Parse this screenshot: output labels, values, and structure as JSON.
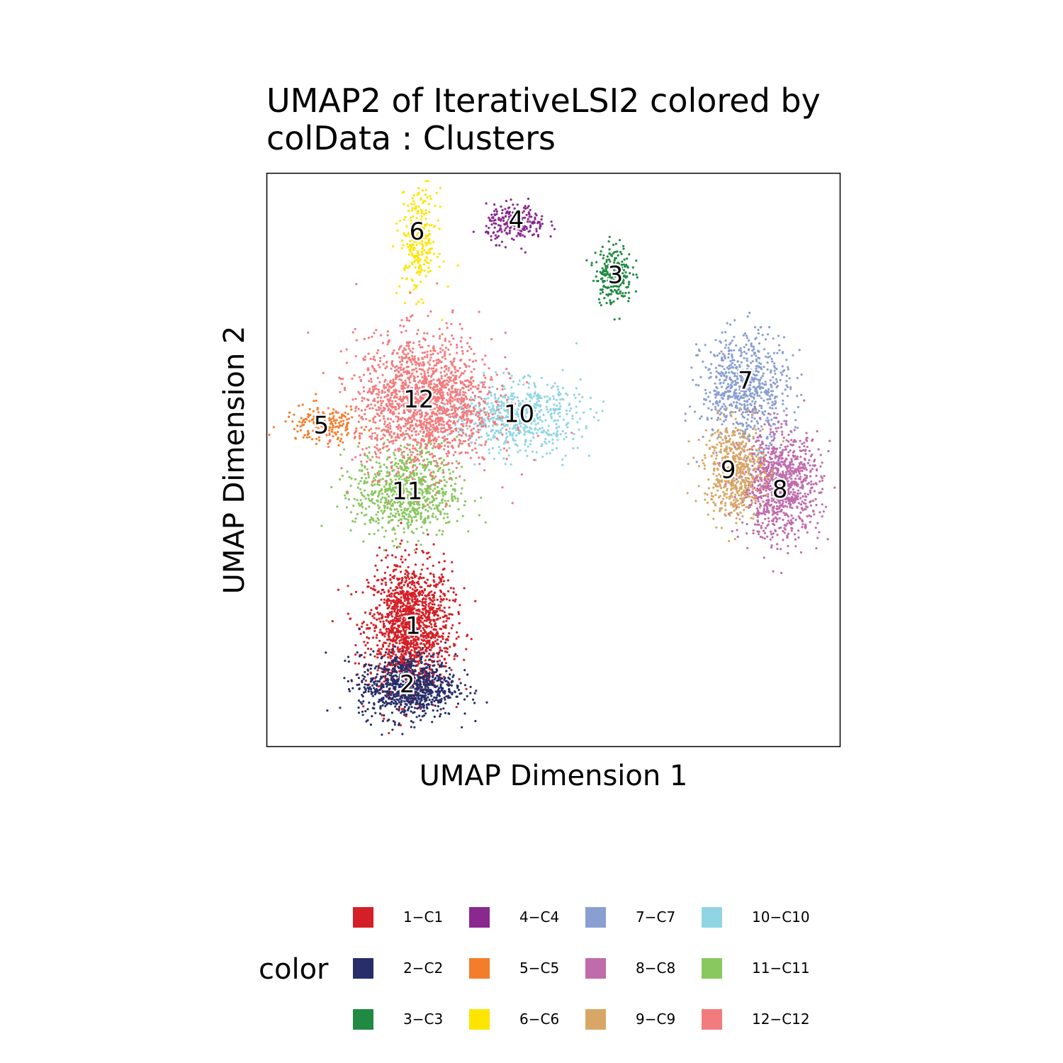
{
  "chart_data": {
    "type": "scatter",
    "title_lines": [
      "UMAP2 of IterativeLSI2  colored by",
      "colData :  Clusters"
    ],
    "xlabel": "UMAP Dimension 1",
    "ylabel": "UMAP Dimension 2",
    "xlim": [
      0,
      100
    ],
    "ylim": [
      0,
      100
    ],
    "grid": false,
    "legend_title": "color",
    "legend_position": "bottom",
    "clusters": [
      {
        "id": "1",
        "name": "1−C1",
        "color": "#D51F26",
        "cx": 25,
        "cy": 21,
        "sx": 3.6,
        "sy": 5.5,
        "n": 1500
      },
      {
        "id": "2",
        "name": "2−C2",
        "color": "#272E6A",
        "cx": 24.5,
        "cy": 10.5,
        "sx": 4.2,
        "sy": 2.8,
        "n": 900
      },
      {
        "id": "3",
        "name": "3−C3",
        "color": "#208A42",
        "cx": 60.5,
        "cy": 82.5,
        "sx": 1.6,
        "sy": 2.6,
        "n": 230
      },
      {
        "id": "4",
        "name": "4−C4",
        "color": "#89288F",
        "cx": 43.5,
        "cy": 91.2,
        "sx": 2.6,
        "sy": 1.6,
        "n": 230
      },
      {
        "id": "5",
        "name": "5−C5",
        "color": "#F47D2B",
        "cx": 10,
        "cy": 56.2,
        "sx": 3.5,
        "sy": 1.6,
        "n": 180
      },
      {
        "id": "6",
        "name": "6−C6",
        "color": "#FEE500",
        "cx": 26.5,
        "cy": 88,
        "sx": 1.6,
        "sy": 4.5,
        "n": 260
      },
      {
        "id": "7",
        "name": "7−C7",
        "color": "#8A9FD1",
        "cx": 83.5,
        "cy": 62.5,
        "sx": 3.8,
        "sy": 4.8,
        "n": 700
      },
      {
        "id": "8",
        "name": "8−C8",
        "color": "#C06CAB",
        "cx": 89.5,
        "cy": 45.5,
        "sx": 3.5,
        "sy": 4.5,
        "n": 1000
      },
      {
        "id": "9",
        "name": "9−C9",
        "color": "#D8A767",
        "cx": 81.5,
        "cy": 48.2,
        "sx": 2.6,
        "sy": 4.2,
        "n": 550
      },
      {
        "id": "10",
        "name": "10−C10",
        "color": "#90D5E4",
        "cx": 43.5,
        "cy": 57.5,
        "sx": 5.5,
        "sy": 3.0,
        "n": 650
      },
      {
        "id": "11",
        "name": "11−C11",
        "color": "#89C75F",
        "cx": 24.5,
        "cy": 44.5,
        "sx": 4.5,
        "sy": 4.0,
        "n": 800
      },
      {
        "id": "12",
        "name": "12−C12",
        "color": "#F37B7D",
        "cx": 27.5,
        "cy": 60,
        "sx": 6.0,
        "sy": 5.8,
        "n": 1700
      }
    ],
    "label_positions": [
      {
        "id": "1",
        "x": 25.5,
        "y": 21
      },
      {
        "id": "2",
        "x": 24.5,
        "y": 10.8
      },
      {
        "id": "3",
        "x": 60.8,
        "y": 82.2
      },
      {
        "id": "4",
        "x": 43.5,
        "y": 91.8
      },
      {
        "id": "5",
        "x": 9.5,
        "y": 56.0
      },
      {
        "id": "6",
        "x": 26.2,
        "y": 89.8
      },
      {
        "id": "7",
        "x": 83.5,
        "y": 63.8
      },
      {
        "id": "8",
        "x": 89.5,
        "y": 44.8
      },
      {
        "id": "9",
        "x": 80.5,
        "y": 48.2
      },
      {
        "id": "10",
        "x": 44.0,
        "y": 58.0
      },
      {
        "id": "11",
        "x": 24.5,
        "y": 44.5
      },
      {
        "id": "12",
        "x": 26.5,
        "y": 60.5
      }
    ]
  }
}
